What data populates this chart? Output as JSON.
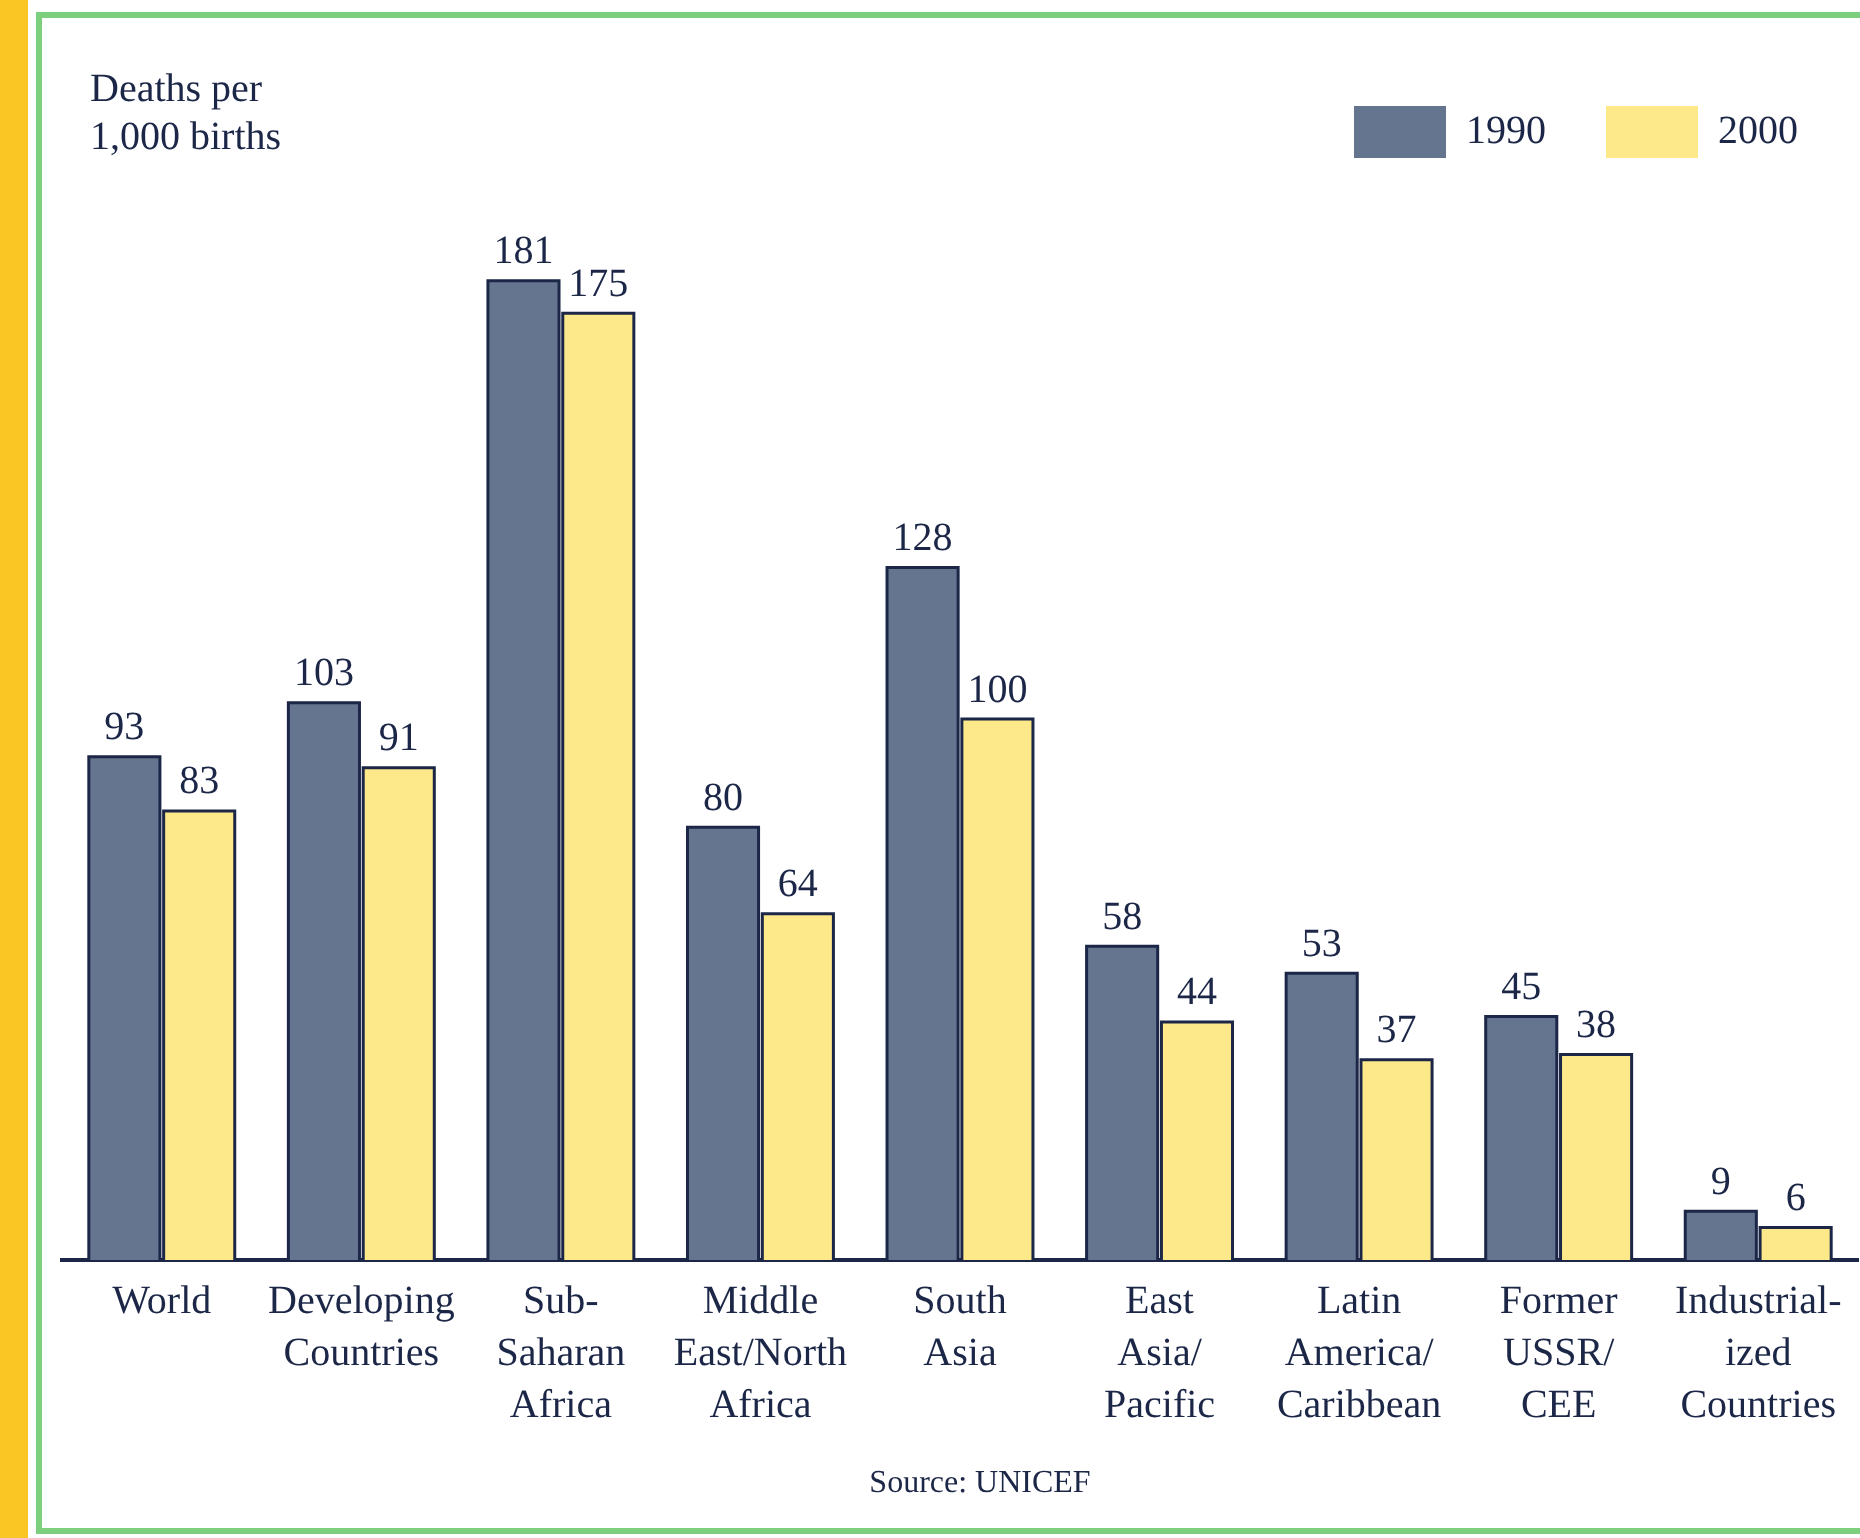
{
  "chart_data": {
    "type": "bar",
    "ylabel": "Deaths per\n1,000 births",
    "categories": [
      "World",
      "Developing\nCountries",
      "Sub-\nSaharan\nAfrica",
      "Middle\nEast/North\nAfrica",
      "South\nAsia",
      "East\nAsia/\nPacific",
      "Latin\nAmerica/\nCaribbean",
      "Former\nUSSR/\nCEE",
      "Industrial-\nized\nCountries"
    ],
    "series": [
      {
        "name": "1990",
        "color": "#66758f",
        "values": [
          93,
          103,
          181,
          80,
          128,
          58,
          53,
          45,
          9
        ]
      },
      {
        "name": "2000",
        "color": "#fde98a",
        "values": [
          83,
          91,
          175,
          64,
          100,
          44,
          37,
          38,
          6
        ]
      }
    ],
    "data_labels": true,
    "legend": "top right",
    "grid": false,
    "annotations": [
      "Source: UNICEF"
    ]
  }
}
